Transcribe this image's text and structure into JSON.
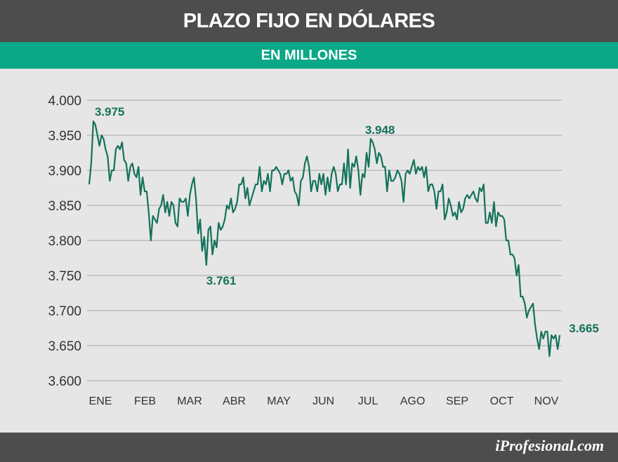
{
  "header": {
    "title": "PLAZO FIJO EN DÓLARES",
    "subtitle": "EN MILLONES"
  },
  "footer": {
    "brand": "iProfesional.com"
  },
  "colors": {
    "line": "#14725a",
    "accent": "#0aa887",
    "bar": "#4d4d4d",
    "grid": "#a6a6a6"
  },
  "chart_data": {
    "type": "line",
    "title": "PLAZO FIJO EN DÓLARES",
    "subtitle": "EN MILLONES",
    "xlabel": "",
    "ylabel": "",
    "ylim": [
      3600,
      4000
    ],
    "yticks": [
      4000,
      3950,
      3900,
      3850,
      3800,
      3750,
      3700,
      3650,
      3600
    ],
    "ytick_labels": [
      "4.000",
      "3.950",
      "3.900",
      "3.850",
      "3.800",
      "3.750",
      "3.700",
      "3.650",
      "3.600"
    ],
    "month_labels": [
      "ENE",
      "FEB",
      "MAR",
      "ABR",
      "MAY",
      "JUN",
      "JUL",
      "AGO",
      "SEP",
      "OCT",
      "NOV"
    ],
    "grid": true,
    "legend": "none",
    "series": [
      {
        "values": [
          3880,
          3910,
          3970,
          3965,
          3950,
          3935,
          3950,
          3945,
          3930,
          3920,
          3885,
          3900,
          3900,
          3930,
          3935,
          3930,
          3940,
          3915,
          3910,
          3885,
          3905,
          3910,
          3895,
          3890,
          3905,
          3865,
          3890,
          3870,
          3870,
          3840,
          3800,
          3835,
          3830,
          3825,
          3845,
          3850,
          3865,
          3840,
          3855,
          3835,
          3855,
          3850,
          3825,
          3820,
          3860,
          3855,
          3855,
          3860,
          3835,
          3865,
          3880,
          3890,
          3860,
          3810,
          3830,
          3785,
          3805,
          3765,
          3815,
          3820,
          3780,
          3800,
          3790,
          3825,
          3815,
          3820,
          3830,
          3850,
          3845,
          3860,
          3840,
          3845,
          3855,
          3880,
          3880,
          3890,
          3860,
          3875,
          3850,
          3860,
          3870,
          3880,
          3880,
          3905,
          3870,
          3885,
          3880,
          3895,
          3870,
          3900,
          3900,
          3905,
          3900,
          3895,
          3880,
          3895,
          3895,
          3900,
          3885,
          3890,
          3870,
          3865,
          3850,
          3885,
          3890,
          3910,
          3920,
          3905,
          3870,
          3885,
          3885,
          3870,
          3895,
          3880,
          3895,
          3865,
          3890,
          3870,
          3895,
          3905,
          3895,
          3870,
          3880,
          3880,
          3910,
          3880,
          3930,
          3875,
          3910,
          3905,
          3920,
          3900,
          3865,
          3895,
          3890,
          3925,
          3905,
          3945,
          3940,
          3930,
          3910,
          3925,
          3920,
          3905,
          3905,
          3870,
          3900,
          3885,
          3885,
          3890,
          3900,
          3895,
          3885,
          3855,
          3895,
          3900,
          3895,
          3905,
          3915,
          3895,
          3905,
          3900,
          3905,
          3890,
          3905,
          3870,
          3880,
          3880,
          3870,
          3845,
          3870,
          3870,
          3880,
          3830,
          3840,
          3860,
          3850,
          3835,
          3840,
          3830,
          3855,
          3840,
          3845,
          3860,
          3865,
          3860,
          3865,
          3870,
          3860,
          3855,
          3875,
          3870,
          3880,
          3825,
          3825,
          3840,
          3825,
          3855,
          3820,
          3840,
          3835,
          3835,
          3830,
          3800,
          3800,
          3780,
          3780,
          3775,
          3750,
          3765,
          3720,
          3720,
          3710,
          3690,
          3700,
          3705,
          3710,
          3680,
          3660,
          3645,
          3670,
          3660,
          3670,
          3670,
          3635,
          3665,
          3660,
          3665,
          3645,
          3665
        ]
      }
    ],
    "annotations": [
      {
        "text": "3.975",
        "x_index": 2,
        "value": 3975
      },
      {
        "text": "3.761",
        "x_index": 57,
        "value": 3761
      },
      {
        "text": "3.948",
        "x_index": 137,
        "value": 3948
      },
      {
        "text": "3.665",
        "x_index": 239,
        "value": 3665
      }
    ]
  }
}
